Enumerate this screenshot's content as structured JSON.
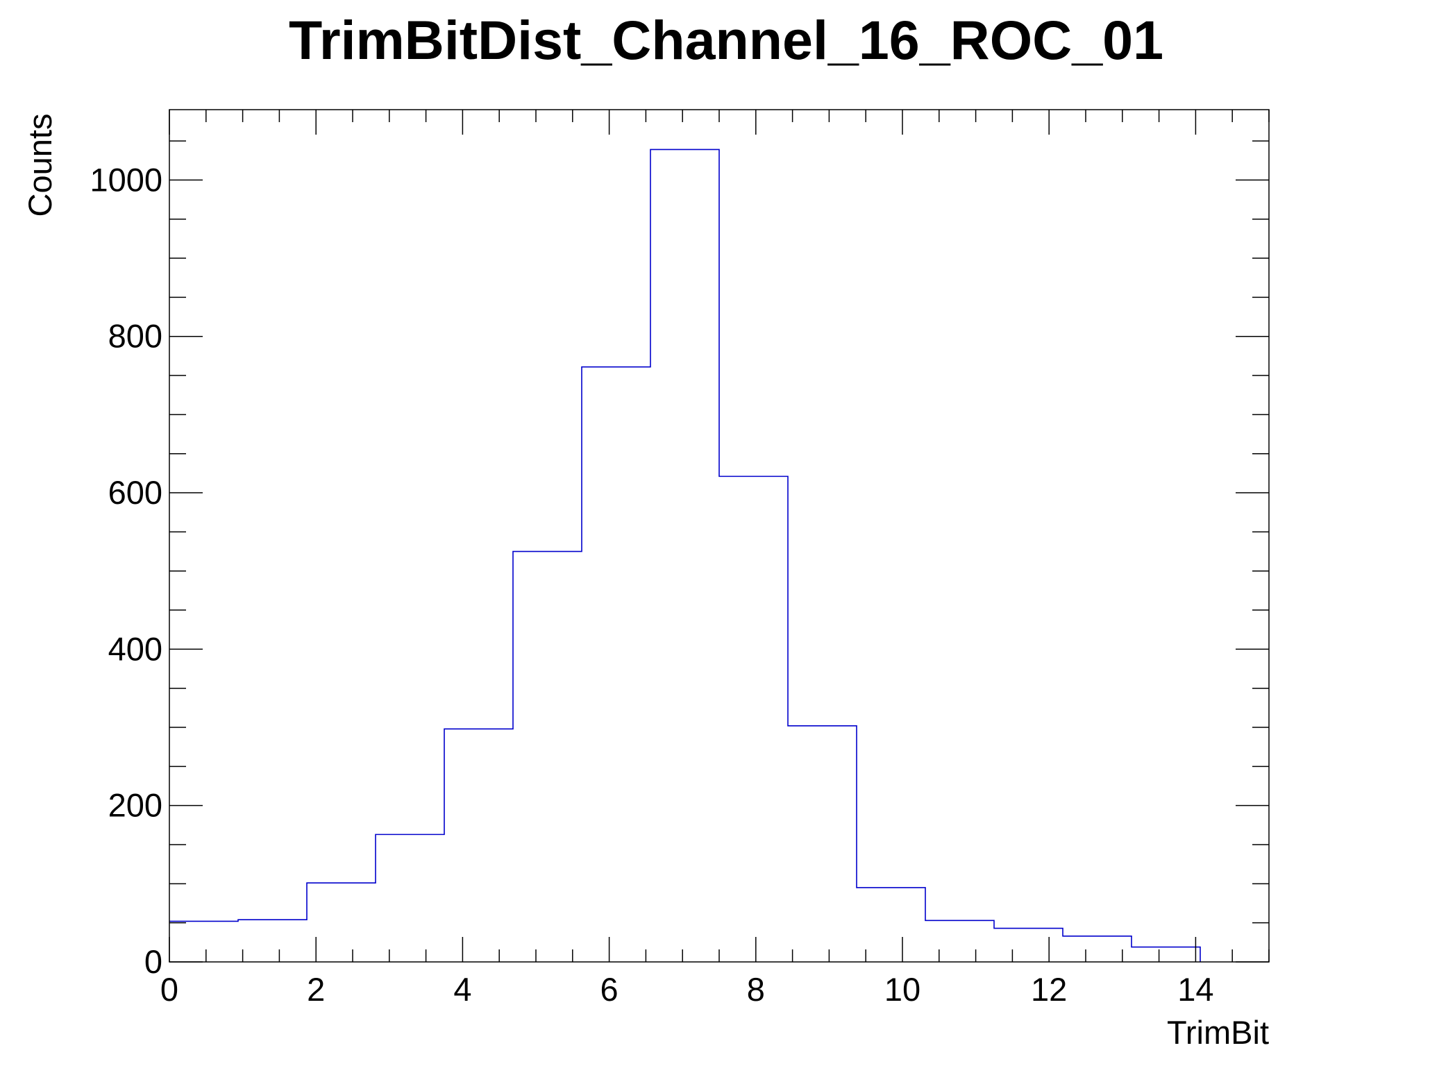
{
  "chart_data": {
    "type": "bar",
    "histogram": true,
    "title": "TrimBitDist_Channel_16_ROC_01",
    "xlabel": "TrimBit",
    "ylabel": "Counts",
    "xlim": [
      0,
      15
    ],
    "ylim": [
      0,
      1090
    ],
    "bin_edges": [
      0,
      0.9375,
      1.875,
      2.8125,
      3.75,
      4.6875,
      5.625,
      6.5625,
      7.5,
      8.4375,
      9.375,
      10.3125,
      11.25,
      12.1875,
      13.125,
      14.0625,
      15
    ],
    "values": [
      52,
      54,
      101,
      163,
      298,
      525,
      761,
      1039,
      621,
      302,
      95,
      53,
      43,
      33,
      19,
      0
    ],
    "xticks": [
      0,
      2,
      4,
      6,
      8,
      10,
      12,
      14
    ],
    "xtick_labels": [
      "0",
      "2",
      "4",
      "6",
      "8",
      "10",
      "12",
      "14"
    ],
    "yticks": [
      0,
      200,
      400,
      600,
      800,
      1000
    ],
    "ytick_labels": [
      "0",
      "200",
      "400",
      "600",
      "800",
      "1000"
    ],
    "grid": false,
    "line_color": "#0000cc"
  }
}
